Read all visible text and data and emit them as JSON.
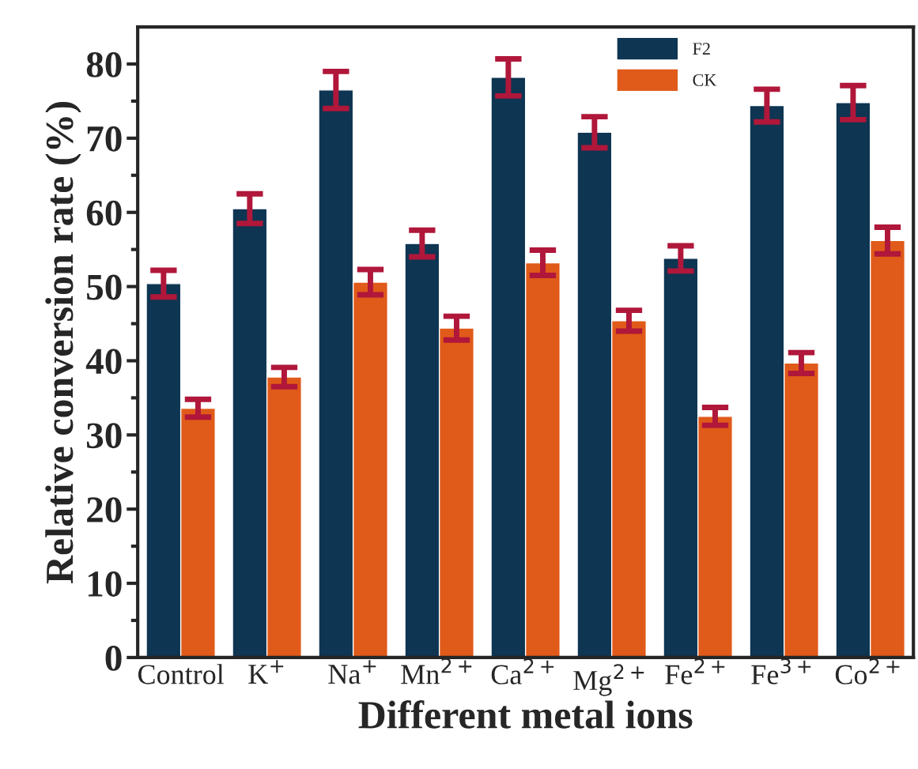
{
  "chart_data": {
    "type": "bar",
    "xlabel": "Different metal ions",
    "ylabel": "Relative conversion rate (%)",
    "categories": [
      "Control",
      "K$^{+}$",
      "Na$^{+}$",
      "Mn$^{2+}$",
      "Ca$^{2+}$",
      "Mg$^{2+}$",
      "Fe$^{2+}$",
      "Fe$^{3+}$",
      "Co$^{2+}$"
    ],
    "series": [
      {
        "name": "F2",
        "color": "#0e3552",
        "values": [
          50.4,
          60.5,
          76.5,
          55.8,
          78.2,
          70.8,
          53.8,
          74.4,
          74.8
        ],
        "errors": [
          1.8,
          2.0,
          2.5,
          1.8,
          2.5,
          2.1,
          1.7,
          2.2,
          2.3
        ]
      },
      {
        "name": "CK",
        "color": "#e05a1a",
        "values": [
          33.6,
          37.8,
          50.6,
          44.4,
          53.2,
          45.4,
          32.5,
          39.7,
          56.2
        ],
        "errors": [
          1.2,
          1.3,
          1.7,
          1.6,
          1.7,
          1.4,
          1.2,
          1.4,
          1.8
        ]
      }
    ],
    "ylim": [
      0,
      85
    ],
    "yticks": [
      0,
      10,
      20,
      30,
      40,
      50,
      60,
      70,
      80
    ],
    "grid": false,
    "legend": "top right"
  }
}
